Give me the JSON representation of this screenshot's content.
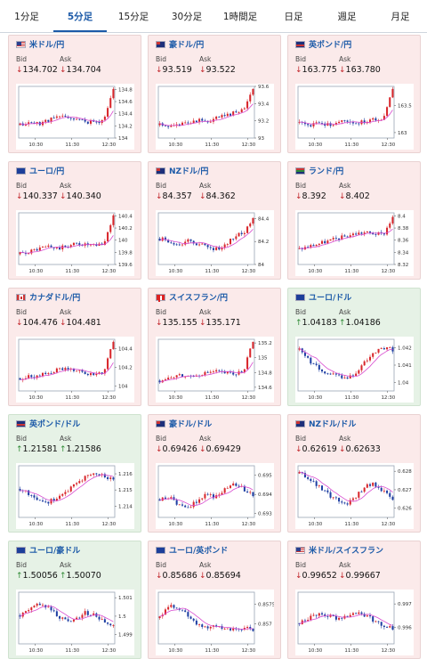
{
  "tabs": [
    "1分足",
    "5分足",
    "15分足",
    "30分足",
    "1時間足",
    "日足",
    "週足",
    "月足"
  ],
  "active_tab": 1,
  "labels": {
    "bid": "Bid",
    "ask": "Ask"
  },
  "x_ticks": [
    "10:30",
    "11:30",
    "12:30"
  ],
  "colors": {
    "up": "#d8262b",
    "down": "#1f3fa3",
    "ma": "#d84bd0",
    "down_bg": "#fbeaea",
    "up_bg": "#e6f2e6"
  },
  "cards": [
    {
      "pair": "米ドル/円",
      "flag": "us-flag",
      "dir": "down",
      "bid": "134.702",
      "ask": "134.704",
      "yticks": [
        "134.8",
        "134.6",
        "134.4",
        "134.2",
        "134"
      ],
      "yrange": [
        134.0,
        134.85
      ],
      "seed": 11,
      "shape": [
        0.25,
        0.3,
        0.28,
        0.35,
        0.4,
        0.42,
        0.35,
        0.32,
        0.3,
        0.35,
        0.95
      ]
    },
    {
      "pair": "豪ドル/円",
      "flag": "au-flag",
      "dir": "down",
      "bid": "93.519",
      "ask": "93.522",
      "yticks": [
        "93.6",
        "93.4",
        "93.2",
        "93"
      ],
      "yrange": [
        93.0,
        93.6
      ],
      "seed": 23,
      "shape": [
        0.25,
        0.2,
        0.25,
        0.3,
        0.35,
        0.3,
        0.38,
        0.42,
        0.5,
        0.55,
        0.95
      ]
    },
    {
      "pair": "英ポンド/円",
      "flag": "gb-flag",
      "dir": "down",
      "bid": "163.775",
      "ask": "163.780",
      "yticks": [
        "163.5",
        "163"
      ],
      "yrange": [
        162.9,
        163.85
      ],
      "seed": 37,
      "shape": [
        0.3,
        0.22,
        0.28,
        0.25,
        0.3,
        0.35,
        0.3,
        0.32,
        0.35,
        0.4,
        0.95
      ]
    },
    {
      "pair": "ユーロ/円",
      "flag": "eu-flag",
      "dir": "down",
      "bid": "140.337",
      "ask": "140.340",
      "yticks": [
        "140.4",
        "140.2",
        "140",
        "139.8",
        "139.6"
      ],
      "yrange": [
        139.6,
        140.45
      ],
      "seed": 41,
      "shape": [
        0.2,
        0.25,
        0.3,
        0.35,
        0.3,
        0.35,
        0.4,
        0.38,
        0.35,
        0.4,
        0.95
      ]
    },
    {
      "pair": "NZドル/円",
      "flag": "nz-flag",
      "dir": "down",
      "bid": "84.357",
      "ask": "84.362",
      "yticks": [
        "84.4",
        "84.2",
        "84"
      ],
      "yrange": [
        84.0,
        84.45
      ],
      "seed": 53,
      "shape": [
        0.5,
        0.45,
        0.4,
        0.45,
        0.4,
        0.35,
        0.3,
        0.35,
        0.55,
        0.6,
        0.9
      ]
    },
    {
      "pair": "ランド/円",
      "flag": "za-flag",
      "dir": "down",
      "bid": "8.392",
      "ask": "8.402",
      "yticks": [
        "8.4",
        "8.38",
        "8.36",
        "8.34",
        "8.32"
      ],
      "yrange": [
        8.32,
        8.405
      ],
      "seed": 67,
      "shape": [
        0.3,
        0.35,
        0.4,
        0.45,
        0.5,
        0.55,
        0.6,
        0.62,
        0.6,
        0.58,
        0.92
      ]
    },
    {
      "pair": "カナダドル/円",
      "flag": "ca-flag",
      "dir": "down",
      "bid": "104.476",
      "ask": "104.481",
      "yticks": [
        "104.4",
        "104.2",
        "104"
      ],
      "yrange": [
        103.95,
        104.5
      ],
      "seed": 71,
      "shape": [
        0.25,
        0.3,
        0.28,
        0.35,
        0.4,
        0.45,
        0.38,
        0.35,
        0.32,
        0.38,
        0.95
      ]
    },
    {
      "pair": "スイスフラン/円",
      "flag": "ch-flag",
      "dir": "down",
      "bid": "135.155",
      "ask": "135.171",
      "yticks": [
        "135.2",
        "135",
        "134.8",
        "134.6"
      ],
      "yrange": [
        134.55,
        135.25
      ],
      "seed": 83,
      "shape": [
        0.2,
        0.25,
        0.3,
        0.28,
        0.32,
        0.35,
        0.38,
        0.35,
        0.32,
        0.4,
        0.95
      ]
    },
    {
      "pair": "ユーロ/ドル",
      "flag": "eu-flag",
      "dir": "up",
      "bid": "1.04183",
      "ask": "1.04186",
      "yticks": [
        "1.042",
        "1.041",
        "1.04"
      ],
      "yrange": [
        1.0395,
        1.0425
      ],
      "seed": 97,
      "shape": [
        0.8,
        0.6,
        0.45,
        0.35,
        0.3,
        0.25,
        0.35,
        0.55,
        0.75,
        0.85,
        0.8
      ]
    },
    {
      "pair": "英ポンド/ドル",
      "flag": "gb-flag",
      "dir": "up",
      "bid": "1.21581",
      "ask": "1.21586",
      "yticks": [
        "1.216",
        "1.215",
        "1.214"
      ],
      "yrange": [
        1.2133,
        1.2165
      ],
      "seed": 101,
      "shape": [
        0.55,
        0.45,
        0.35,
        0.3,
        0.4,
        0.5,
        0.65,
        0.8,
        0.85,
        0.8,
        0.75
      ]
    },
    {
      "pair": "豪ドル/ドル",
      "flag": "au-flag",
      "dir": "down",
      "bid": "0.69426",
      "ask": "0.69429",
      "yticks": [
        "0.695",
        "0.694",
        "0.693"
      ],
      "yrange": [
        0.6928,
        0.6955
      ],
      "seed": 113,
      "shape": [
        0.35,
        0.4,
        0.25,
        0.2,
        0.3,
        0.45,
        0.4,
        0.55,
        0.65,
        0.55,
        0.45
      ]
    },
    {
      "pair": "NZドル/ドル",
      "flag": "nz-flag",
      "dir": "down",
      "bid": "0.62619",
      "ask": "0.62633",
      "yticks": [
        "0.628",
        "0.627",
        "0.626"
      ],
      "yrange": [
        0.6255,
        0.6283
      ],
      "seed": 127,
      "shape": [
        0.85,
        0.75,
        0.6,
        0.45,
        0.35,
        0.25,
        0.4,
        0.6,
        0.65,
        0.5,
        0.35
      ]
    },
    {
      "pair": "ユーロ/豪ドル",
      "flag": "eu-flag",
      "dir": "up",
      "bid": "1.50056",
      "ask": "1.50070",
      "yticks": [
        "1.501",
        "1.5",
        "1.499"
      ],
      "yrange": [
        1.4985,
        1.5013
      ],
      "seed": 131,
      "shape": [
        0.55,
        0.65,
        0.8,
        0.7,
        0.55,
        0.45,
        0.5,
        0.6,
        0.55,
        0.45,
        0.35
      ]
    },
    {
      "pair": "ユーロ/英ポンド",
      "flag": "eu-flag",
      "dir": "down",
      "bid": "0.85686",
      "ask": "0.85694",
      "yticks": [
        "0.8575",
        "0.857"
      ],
      "yrange": [
        0.8565,
        0.8578
      ],
      "seed": 139,
      "shape": [
        0.5,
        0.75,
        0.7,
        0.55,
        0.4,
        0.3,
        0.35,
        0.3,
        0.25,
        0.3,
        0.28
      ]
    },
    {
      "pair": "米ドル/スイスフラン",
      "flag": "us-flag",
      "dir": "down",
      "bid": "0.99652",
      "ask": "0.99667",
      "yticks": [
        "0.997",
        "0.996"
      ],
      "yrange": [
        0.9953,
        0.9975
      ],
      "seed": 149,
      "shape": [
        0.4,
        0.5,
        0.6,
        0.55,
        0.5,
        0.55,
        0.6,
        0.55,
        0.45,
        0.35,
        0.3
      ]
    }
  ]
}
